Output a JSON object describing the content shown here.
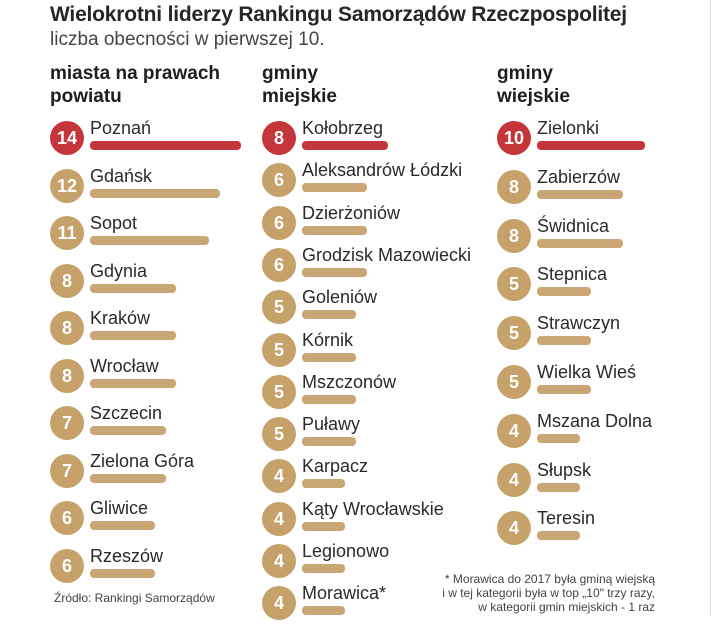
{
  "title": "Wielokrotni liderzy Rankingu Samorządów Rzeczpospolitej",
  "subtitle": "liczba obecności w pierwszej 10.",
  "colors": {
    "leader": "#c5363a",
    "default": "#c6a16a",
    "leader_bar": "#c5363a",
    "default_bar": "#c9a673"
  },
  "chart_data": {
    "type": "bar",
    "title": "Wielokrotni liderzy Rankingu Samorządów Rzeczpospolitej",
    "subtitle": "liczba obecności w pierwszej 10.",
    "groups": [
      {
        "heading_lines": [
          "miasta na prawach",
          "powiatu"
        ],
        "items": [
          {
            "name": "Poznań",
            "value": 14
          },
          {
            "name": "Gdańsk",
            "value": 12
          },
          {
            "name": "Sopot",
            "value": 11
          },
          {
            "name": "Gdynia",
            "value": 8
          },
          {
            "name": "Kraków",
            "value": 8
          },
          {
            "name": "Wrocław",
            "value": 8
          },
          {
            "name": "Szczecin",
            "value": 7
          },
          {
            "name": "Zielona Góra",
            "value": 7
          },
          {
            "name": "Gliwice",
            "value": 6
          },
          {
            "name": "Rzeszów",
            "value": 6
          }
        ]
      },
      {
        "heading_lines": [
          "gminy",
          "miejskie"
        ],
        "items": [
          {
            "name": "Kołobrzeg",
            "value": 8
          },
          {
            "name": "Aleksandrów Łódzki",
            "value": 6
          },
          {
            "name": "Dzierżoniów",
            "value": 6
          },
          {
            "name": "Grodzisk Mazowiecki",
            "value": 6
          },
          {
            "name": "Goleniów",
            "value": 5
          },
          {
            "name": "Kórnik",
            "value": 5
          },
          {
            "name": "Mszczonów",
            "value": 5
          },
          {
            "name": "Puławy",
            "value": 5
          },
          {
            "name": "Karpacz",
            "value": 4
          },
          {
            "name": "Kąty Wrocławskie",
            "value": 4
          },
          {
            "name": "Legionowo",
            "value": 4
          },
          {
            "name": "Morawica*",
            "value": 4
          }
        ]
      },
      {
        "heading_lines": [
          "gminy",
          "wiejskie"
        ],
        "items": [
          {
            "name": "Zielonki",
            "value": 10
          },
          {
            "name": "Zabierzów",
            "value": 8
          },
          {
            "name": "Świdnica",
            "value": 8
          },
          {
            "name": "Stepnica",
            "value": 5
          },
          {
            "name": "Strawczyn",
            "value": 5
          },
          {
            "name": "Wielka Wieś",
            "value": 5
          },
          {
            "name": "Mszana Dolna",
            "value": 4
          },
          {
            "name": "Słupsk",
            "value": 4
          },
          {
            "name": "Teresin",
            "value": 4
          }
        ]
      }
    ]
  },
  "source": "Źródło: Rankingi Samorządów",
  "footnote_lines": [
    "* Morawica do 2017 była gminą wiejską",
    "i w tej kategorii była w top „10\" trzy razy,",
    "w kategorii gmin miejskich - 1 raz"
  ]
}
